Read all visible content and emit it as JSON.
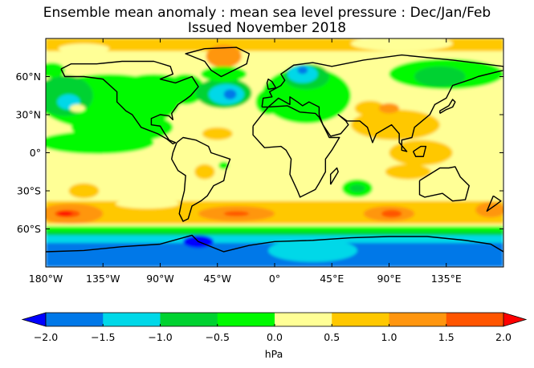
{
  "title": {
    "line1": "Ensemble mean anomaly : mean sea level pressure : Dec/Jan/Feb",
    "line2": "Issued November 2018"
  },
  "map": {
    "projection": "equirectangular",
    "lon_range": [
      -180,
      180
    ],
    "lat_range": [
      -90,
      90
    ],
    "x_ticks": [
      "180°W",
      "135°W",
      "90°W",
      "45°W",
      "0°",
      "45°E",
      "90°E",
      "135°E"
    ],
    "y_ticks": [
      "60°N",
      "30°N",
      "0°",
      "30°S",
      "60°S"
    ]
  },
  "colorbar": {
    "unit": "hPa",
    "levels": [
      -2.0,
      -1.5,
      -1.0,
      -0.5,
      0.0,
      0.5,
      1.0,
      1.5,
      2.0
    ],
    "tick_labels": [
      "−2.0",
      "−1.5",
      "−1.0",
      "−0.5",
      "0.0",
      "0.5",
      "1.0",
      "1.5",
      "2.0"
    ],
    "colors": [
      "#0078e8",
      "#00d8e8",
      "#00d230",
      "#00fa00",
      "#ffff96",
      "#ffc800",
      "#ff960f",
      "#ff5500"
    ],
    "under_color": "#0000ff",
    "over_color": "#ff0000",
    "extend": "both"
  }
}
